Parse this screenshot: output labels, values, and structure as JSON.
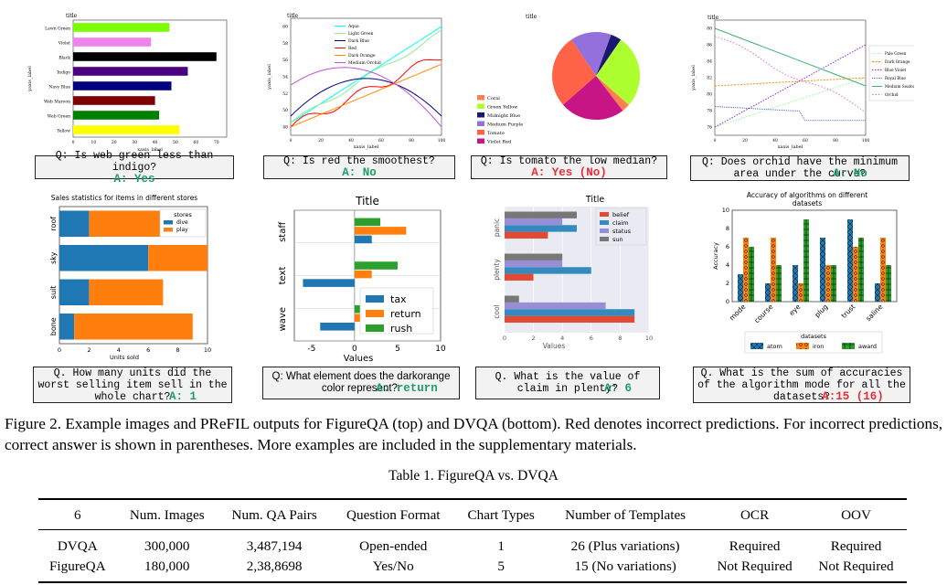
{
  "charts": {
    "c1": {
      "title": "title",
      "ylabel": "yaxis_label",
      "xlabel": "xaxis_label",
      "categories": [
        "Lawn Green",
        "Violet",
        "Black",
        "Indigo",
        "Navy Blue",
        "Web Maroon",
        "Web Green",
        "Yellow"
      ],
      "values": [
        47,
        38,
        70,
        56,
        48,
        40,
        42,
        52
      ],
      "colors": [
        "#7cfc00",
        "#ee82ee",
        "#000000",
        "#4b0082",
        "#000080",
        "#7f0000",
        "#008000",
        "#ffff00"
      ],
      "xticks": [
        0,
        10,
        20,
        30,
        40,
        50,
        60,
        70
      ]
    },
    "c2": {
      "title": "title",
      "ylabel": "yaxis_label",
      "xlabel": "xaxis_label",
      "legend": [
        "Aqua",
        "Light Green",
        "Dark Blue",
        "Red",
        "Dark Orange",
        "Medium Orchid"
      ],
      "colors": [
        "#00ffff",
        "#90ee90",
        "#00008b",
        "#ff0000",
        "#ff8c00",
        "#ba55d3"
      ],
      "xticks": [
        0,
        20,
        40,
        60,
        80,
        100
      ],
      "yticks": [
        48,
        50,
        52,
        54,
        56,
        58,
        60
      ]
    },
    "c3": {
      "title": "title",
      "legend": [
        "Coral",
        "Green Yellow",
        "Midnight Blue",
        "Medium Purple",
        "Tomato",
        "Violet Red"
      ],
      "colors": [
        "#ff7f50",
        "#adff2f",
        "#191970",
        "#9370db",
        "#ff6347",
        "#c71585"
      ],
      "values": [
        3,
        27,
        4,
        15,
        27,
        24
      ]
    },
    "c4": {
      "title": "title",
      "ylabel": "yaxis_label",
      "xlabel": "xaxis_label",
      "legend": [
        "Pale Green",
        "Dark Orange",
        "Blue Violet",
        "Royal Blue",
        "Medium Seafoam",
        "Orchid"
      ],
      "colors": [
        "#98fb98",
        "#ff8c00",
        "#8a2be2",
        "#4169e1",
        "#3cb371",
        "#da70d6"
      ],
      "xticks": [
        0,
        20,
        40,
        60,
        80,
        100
      ],
      "yticks": [
        76,
        78,
        80,
        82,
        84,
        86,
        88
      ]
    },
    "c5": {
      "title": "Sales statistics for items in different stores",
      "xlabel": "Units sold",
      "legend_title": "stores",
      "legend": [
        "dive",
        "play"
      ],
      "categories": [
        "roof",
        "sky",
        "suit",
        "bone"
      ],
      "dive": [
        2,
        6,
        2,
        1
      ],
      "play": [
        6,
        4,
        5,
        8
      ],
      "xticks": [
        0,
        2,
        4,
        6,
        8,
        10
      ]
    },
    "c6": {
      "title": "Title",
      "xlabel": "Values",
      "legend": [
        "tax",
        "return",
        "rush"
      ],
      "groups": [
        "staff",
        "text",
        "wave"
      ],
      "tax": [
        2,
        -6,
        -4
      ],
      "return": [
        6,
        2,
        6
      ],
      "rush": [
        3,
        5,
        2
      ],
      "xticks": [
        -5,
        0,
        5,
        10
      ]
    },
    "c7": {
      "title": "Title",
      "xlabel": "Values",
      "legend": [
        "belief",
        "claim",
        "status",
        "sun"
      ],
      "groups": [
        "panic",
        "plenty",
        "cool"
      ],
      "belief": [
        3,
        2,
        9
      ],
      "claim": [
        5,
        6,
        9
      ],
      "status": [
        4,
        4,
        7
      ],
      "sun": [
        5,
        4,
        1
      ],
      "xticks": [
        0,
        2,
        4,
        6,
        8,
        10
      ]
    },
    "c8": {
      "title": "Accuracy of algorithms on different datasets",
      "title_l1": "Accuracy of algorithms on different",
      "title_l2": "datasets",
      "ylabel": "Accuracy",
      "legend_title": "datasets",
      "legend": [
        "atom",
        "iron",
        "award"
      ],
      "categories": [
        "mode",
        "course",
        "eye",
        "plug",
        "trust",
        "saline"
      ],
      "atom": [
        3,
        2,
        4,
        7,
        9,
        2
      ],
      "iron": [
        7,
        7,
        2,
        4,
        6,
        7
      ],
      "award": [
        6,
        4,
        9,
        4,
        7,
        4
      ],
      "yticks": [
        0,
        2,
        4,
        6,
        8,
        10
      ]
    }
  },
  "questions": [
    {
      "q": "Q: Is web green less than indigo?",
      "a": "A: Yes",
      "status": "green"
    },
    {
      "q": "Q: Is red the smoothest?",
      "a": "A: No",
      "status": "green"
    },
    {
      "q": "Q: Is tomato the low median?",
      "a": "A: Yes (No)",
      "status": "red"
    },
    {
      "q": "Q: Does orchid have the minimum area under the curve?",
      "a": "A: No",
      "status": "green"
    },
    {
      "q": "Q. How many units did the worst selling item sell in the whole chart?",
      "a": "A: 1",
      "status": "green"
    },
    {
      "q": "Q: What element does the darkorange color represent?:",
      "a": "A: return",
      "status": "green"
    },
    {
      "q": "Q. What is the value of claim in plenty?",
      "a": "A: 6",
      "status": "green"
    },
    {
      "q": "Q. What is the sum of accuracies of the algorithm mode for all the datasets?",
      "a": "A:15 (16)",
      "status": "red"
    }
  ],
  "caption": "Figure 2. Example images and PReFIL outputs for FigureQA (top) and DVQA (bottom). Red denotes incorrect predictions. For incorrect predictions, correct answer is shown in parentheses. More examples are included in the supplementary materials.",
  "table": {
    "caption": "Table 1. FigureQA vs. DVQA",
    "headers": [
      "6",
      "Num. Images",
      "Num. QA Pairs",
      "Question Format",
      "Chart Types",
      "Number of Templates",
      "OCR",
      "OOV"
    ],
    "rows": [
      [
        "DVQA",
        "300,000",
        "3,487,194",
        "Open-ended",
        "1",
        "26 (Plus variations)",
        "Required",
        "Required"
      ],
      [
        "FigureQA",
        "180,000",
        "2,38,8698",
        "Yes/No",
        "5",
        "15 (No variations)",
        "Not Required",
        "Not Required"
      ]
    ]
  }
}
